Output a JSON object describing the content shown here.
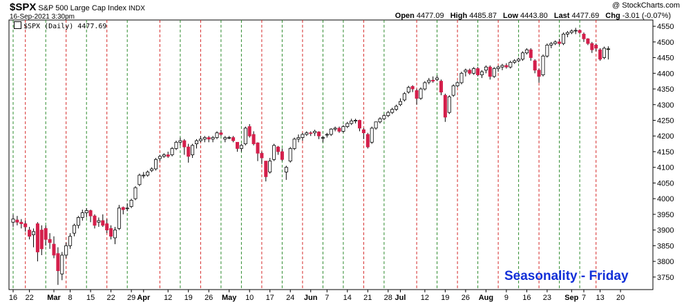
{
  "header": {
    "symbol": "$SPX",
    "company": "S&P 500 Large Cap Index",
    "exchange": "INDX",
    "date": "16-Sep-2021 3:30pm",
    "watermark": "@ StockCharts.com"
  },
  "quote": {
    "open_label": "Open",
    "open": "4477.09",
    "high_label": "High",
    "high": "4485.87",
    "low_label": "Low",
    "low": "4443.80",
    "last_label": "Last",
    "last": "4477.69",
    "chg_label": "Chg",
    "chg": "-3.01 (-0.07%)"
  },
  "legend": {
    "label": "$SPX (Daily) 4477.69"
  },
  "annotation": "Seasonality - Friday",
  "colors": {
    "up": "#ffffff",
    "down": "#d41f4b",
    "friday_line": "#d62a2a",
    "other_line": "#2e8b2e",
    "annotation": "#1330d8"
  },
  "chart_data": {
    "type": "candlestick",
    "y_range": [
      3710,
      4570
    ],
    "y_ticks": [
      3750,
      3800,
      3850,
      3900,
      3950,
      4000,
      4050,
      4100,
      4150,
      4200,
      4250,
      4300,
      4350,
      4400,
      4450,
      4500,
      4550
    ],
    "x_labels": [
      {
        "label": "16",
        "bar": 0
      },
      {
        "label": "22",
        "bar": 4
      },
      {
        "label": "Mar",
        "bar": 10,
        "bold": true
      },
      {
        "label": "8",
        "bar": 14
      },
      {
        "label": "15",
        "bar": 19
      },
      {
        "label": "22",
        "bar": 24
      },
      {
        "label": "29",
        "bar": 29
      },
      {
        "label": "Apr",
        "bar": 32,
        "bold": true
      },
      {
        "label": "12",
        "bar": 38
      },
      {
        "label": "19",
        "bar": 43
      },
      {
        "label": "26",
        "bar": 48
      },
      {
        "label": "May",
        "bar": 53,
        "bold": true
      },
      {
        "label": "10",
        "bar": 58
      },
      {
        "label": "17",
        "bar": 63
      },
      {
        "label": "24",
        "bar": 68
      },
      {
        "label": "Jun",
        "bar": 73,
        "bold": true
      },
      {
        "label": "7",
        "bar": 77
      },
      {
        "label": "14",
        "bar": 82
      },
      {
        "label": "21",
        "bar": 87
      },
      {
        "label": "28",
        "bar": 92
      },
      {
        "label": "Jul",
        "bar": 95,
        "bold": true
      },
      {
        "label": "12",
        "bar": 101
      },
      {
        "label": "19",
        "bar": 106
      },
      {
        "label": "26",
        "bar": 111
      },
      {
        "label": "Aug",
        "bar": 116,
        "bold": true
      },
      {
        "label": "9",
        "bar": 121
      },
      {
        "label": "16",
        "bar": 126
      },
      {
        "label": "23",
        "bar": 131
      },
      {
        "label": "Sep",
        "bar": 137,
        "bold": true
      },
      {
        "label": "7",
        "bar": 140
      },
      {
        "label": "13",
        "bar": 144
      },
      {
        "label": "20",
        "bar": 149
      }
    ],
    "friday_bars": [
      3,
      13,
      23,
      36,
      46,
      61,
      71,
      86,
      99,
      109,
      119,
      129,
      143
    ],
    "weekly_bars": [
      0,
      8,
      18,
      28,
      41,
      51,
      56,
      66,
      76,
      81,
      91,
      104,
      114,
      124,
      134,
      139
    ],
    "series": [
      {
        "o": 3925,
        "h": 3950,
        "l": 3910,
        "c": 3935
      },
      {
        "o": 3932,
        "h": 3945,
        "l": 3915,
        "c": 3925
      },
      {
        "o": 3925,
        "h": 3935,
        "l": 3905,
        "c": 3920
      },
      {
        "o": 3920,
        "h": 3930,
        "l": 3895,
        "c": 3910
      },
      {
        "o": 3900,
        "h": 3910,
        "l": 3870,
        "c": 3880
      },
      {
        "o": 3885,
        "h": 3905,
        "l": 3845,
        "c": 3895
      },
      {
        "o": 3920,
        "h": 3925,
        "l": 3800,
        "c": 3830
      },
      {
        "o": 3900,
        "h": 3915,
        "l": 3820,
        "c": 3840
      },
      {
        "o": 3905,
        "h": 3915,
        "l": 3850,
        "c": 3870
      },
      {
        "o": 3870,
        "h": 3890,
        "l": 3840,
        "c": 3860
      },
      {
        "o": 3855,
        "h": 3880,
        "l": 3810,
        "c": 3820
      },
      {
        "o": 3825,
        "h": 3845,
        "l": 3725,
        "c": 3770
      },
      {
        "o": 3760,
        "h": 3830,
        "l": 3740,
        "c": 3820
      },
      {
        "o": 3820,
        "h": 3860,
        "l": 3810,
        "c": 3850
      },
      {
        "o": 3850,
        "h": 3890,
        "l": 3840,
        "c": 3880
      },
      {
        "o": 3890,
        "h": 3920,
        "l": 3880,
        "c": 3915
      },
      {
        "o": 3915,
        "h": 3945,
        "l": 3905,
        "c": 3940
      },
      {
        "o": 3940,
        "h": 3965,
        "l": 3930,
        "c": 3955
      },
      {
        "o": 3955,
        "h": 3970,
        "l": 3940,
        "c": 3962
      },
      {
        "o": 3962,
        "h": 3965,
        "l": 3925,
        "c": 3945
      },
      {
        "o": 3945,
        "h": 3950,
        "l": 3905,
        "c": 3915
      },
      {
        "o": 3925,
        "h": 3940,
        "l": 3910,
        "c": 3930
      },
      {
        "o": 3930,
        "h": 3950,
        "l": 3910,
        "c": 3915
      },
      {
        "o": 3920,
        "h": 3935,
        "l": 3890,
        "c": 3900
      },
      {
        "o": 3905,
        "h": 3915,
        "l": 3870,
        "c": 3880
      },
      {
        "o": 3875,
        "h": 3910,
        "l": 3855,
        "c": 3900
      },
      {
        "o": 3905,
        "h": 3980,
        "l": 3900,
        "c": 3970
      },
      {
        "o": 3972,
        "h": 3975,
        "l": 3950,
        "c": 3965
      },
      {
        "o": 3968,
        "h": 3985,
        "l": 3960,
        "c": 3970
      },
      {
        "o": 3975,
        "h": 4000,
        "l": 3970,
        "c": 3995
      },
      {
        "o": 4000,
        "h": 4040,
        "l": 3995,
        "c": 4035
      },
      {
        "o": 4045,
        "h": 4080,
        "l": 4040,
        "c": 4075
      },
      {
        "o": 4075,
        "h": 4085,
        "l": 4065,
        "c": 4075
      },
      {
        "o": 4075,
        "h": 4090,
        "l": 4070,
        "c": 4085
      },
      {
        "o": 4090,
        "h": 4100,
        "l": 4085,
        "c": 4095
      },
      {
        "o": 4095,
        "h": 4130,
        "l": 4090,
        "c": 4125
      },
      {
        "o": 4128,
        "h": 4140,
        "l": 4120,
        "c": 4135
      },
      {
        "o": 4135,
        "h": 4145,
        "l": 4130,
        "c": 4140
      },
      {
        "o": 4140,
        "h": 4150,
        "l": 4130,
        "c": 4135
      },
      {
        "o": 4140,
        "h": 4165,
        "l": 4135,
        "c": 4160
      },
      {
        "o": 4160,
        "h": 4185,
        "l": 4155,
        "c": 4180
      },
      {
        "o": 4180,
        "h": 4195,
        "l": 4170,
        "c": 4185
      },
      {
        "o": 4185,
        "h": 4190,
        "l": 4140,
        "c": 4165
      },
      {
        "o": 4165,
        "h": 4175,
        "l": 4115,
        "c": 4135
      },
      {
        "o": 4140,
        "h": 4175,
        "l": 4130,
        "c": 4170
      },
      {
        "o": 4175,
        "h": 4190,
        "l": 4160,
        "c": 4185
      },
      {
        "o": 4185,
        "h": 4200,
        "l": 4180,
        "c": 4190
      },
      {
        "o": 4190,
        "h": 4200,
        "l": 4180,
        "c": 4195
      },
      {
        "o": 4195,
        "h": 4200,
        "l": 4180,
        "c": 4190
      },
      {
        "o": 4190,
        "h": 4200,
        "l": 4180,
        "c": 4195
      },
      {
        "o": 4195,
        "h": 4215,
        "l": 4190,
        "c": 4210
      },
      {
        "o": 4210,
        "h": 4220,
        "l": 4200,
        "c": 4205
      },
      {
        "o": 4190,
        "h": 4200,
        "l": 4180,
        "c": 4195
      },
      {
        "o": 4195,
        "h": 4200,
        "l": 4190,
        "c": 4195
      },
      {
        "o": 4195,
        "h": 4200,
        "l": 4180,
        "c": 4185
      },
      {
        "o": 4180,
        "h": 4180,
        "l": 4150,
        "c": 4160
      },
      {
        "o": 4160,
        "h": 4175,
        "l": 4150,
        "c": 4170
      },
      {
        "o": 4175,
        "h": 4230,
        "l": 4170,
        "c": 4225
      },
      {
        "o": 4230,
        "h": 4238,
        "l": 4195,
        "c": 4200
      },
      {
        "o": 4205,
        "h": 4215,
        "l": 4170,
        "c": 4175
      },
      {
        "o": 4178,
        "h": 4180,
        "l": 4120,
        "c": 4145
      },
      {
        "o": 4145,
        "h": 4150,
        "l": 4110,
        "c": 4130
      },
      {
        "o": 4120,
        "h": 4120,
        "l": 4055,
        "c": 4070
      },
      {
        "o": 4085,
        "h": 4130,
        "l": 4080,
        "c": 4120
      },
      {
        "o": 4125,
        "h": 4175,
        "l": 4120,
        "c": 4170
      },
      {
        "o": 4165,
        "h": 4168,
        "l": 4140,
        "c": 4150
      },
      {
        "o": 4150,
        "h": 4160,
        "l": 4120,
        "c": 4125
      },
      {
        "o": 4085,
        "h": 4105,
        "l": 4060,
        "c": 4100
      },
      {
        "o": 4120,
        "h": 4165,
        "l": 4115,
        "c": 4160
      },
      {
        "o": 4160,
        "h": 4195,
        "l": 4155,
        "c": 4190
      },
      {
        "o": 4190,
        "h": 4205,
        "l": 4180,
        "c": 4195
      },
      {
        "o": 4195,
        "h": 4210,
        "l": 4185,
        "c": 4205
      },
      {
        "o": 4205,
        "h": 4215,
        "l": 4200,
        "c": 4210
      },
      {
        "o": 4210,
        "h": 4215,
        "l": 4200,
        "c": 4208
      },
      {
        "o": 4210,
        "h": 4220,
        "l": 4200,
        "c": 4215
      },
      {
        "o": 4213,
        "h": 4215,
        "l": 4190,
        "c": 4200
      },
      {
        "o": 4195,
        "h": 4200,
        "l": 4180,
        "c": 4195
      },
      {
        "o": 4205,
        "h": 4210,
        "l": 4195,
        "c": 4205
      },
      {
        "o": 4205,
        "h": 4225,
        "l": 4200,
        "c": 4222
      },
      {
        "o": 4222,
        "h": 4230,
        "l": 4215,
        "c": 4225
      },
      {
        "o": 4225,
        "h": 4230,
        "l": 4210,
        "c": 4215
      },
      {
        "o": 4215,
        "h": 4235,
        "l": 4210,
        "c": 4230
      },
      {
        "o": 4230,
        "h": 4245,
        "l": 4225,
        "c": 4240
      },
      {
        "o": 4240,
        "h": 4255,
        "l": 4235,
        "c": 4248
      },
      {
        "o": 4250,
        "h": 4255,
        "l": 4240,
        "c": 4250
      },
      {
        "o": 4250,
        "h": 4252,
        "l": 4215,
        "c": 4225
      },
      {
        "o": 4220,
        "h": 4225,
        "l": 4190,
        "c": 4210
      },
      {
        "o": 4205,
        "h": 4210,
        "l": 4160,
        "c": 4165
      },
      {
        "o": 4180,
        "h": 4230,
        "l": 4175,
        "c": 4225
      },
      {
        "o": 4225,
        "h": 4245,
        "l": 4220,
        "c": 4245
      },
      {
        "o": 4245,
        "h": 4260,
        "l": 4240,
        "c": 4255
      },
      {
        "o": 4255,
        "h": 4270,
        "l": 4250,
        "c": 4265
      },
      {
        "o": 4265,
        "h": 4280,
        "l": 4260,
        "c": 4275
      },
      {
        "o": 4275,
        "h": 4290,
        "l": 4270,
        "c": 4285
      },
      {
        "o": 4285,
        "h": 4300,
        "l": 4280,
        "c": 4295
      },
      {
        "o": 4300,
        "h": 4320,
        "l": 4295,
        "c": 4310
      },
      {
        "o": 4315,
        "h": 4340,
        "l": 4310,
        "c": 4335
      },
      {
        "o": 4340,
        "h": 4360,
        "l": 4335,
        "c": 4355
      },
      {
        "o": 4358,
        "h": 4362,
        "l": 4340,
        "c": 4350
      },
      {
        "o": 4345,
        "h": 4350,
        "l": 4300,
        "c": 4320
      },
      {
        "o": 4320,
        "h": 4355,
        "l": 4315,
        "c": 4350
      },
      {
        "o": 4350,
        "h": 4375,
        "l": 4345,
        "c": 4370
      },
      {
        "o": 4372,
        "h": 4385,
        "l": 4365,
        "c": 4378
      },
      {
        "o": 4378,
        "h": 4390,
        "l": 4370,
        "c": 4375
      },
      {
        "o": 4380,
        "h": 4393,
        "l": 4375,
        "c": 4385
      },
      {
        "o": 4375,
        "h": 4380,
        "l": 4330,
        "c": 4340
      },
      {
        "o": 4330,
        "h": 4335,
        "l": 4245,
        "c": 4260
      },
      {
        "o": 4275,
        "h": 4330,
        "l": 4270,
        "c": 4325
      },
      {
        "o": 4330,
        "h": 4365,
        "l": 4325,
        "c": 4360
      },
      {
        "o": 4360,
        "h": 4375,
        "l": 4355,
        "c": 4370
      },
      {
        "o": 4370,
        "h": 4405,
        "l": 4365,
        "c": 4400
      },
      {
        "o": 4405,
        "h": 4415,
        "l": 4390,
        "c": 4410
      },
      {
        "o": 4410,
        "h": 4415,
        "l": 4395,
        "c": 4400
      },
      {
        "o": 4400,
        "h": 4420,
        "l": 4395,
        "c": 4415
      },
      {
        "o": 4415,
        "h": 4420,
        "l": 4390,
        "c": 4395
      },
      {
        "o": 4395,
        "h": 4410,
        "l": 4385,
        "c": 4405
      },
      {
        "o": 4410,
        "h": 4425,
        "l": 4400,
        "c": 4420
      },
      {
        "o": 4420,
        "h": 4425,
        "l": 4380,
        "c": 4390
      },
      {
        "o": 4390,
        "h": 4420,
        "l": 4385,
        "c": 4415
      },
      {
        "o": 4415,
        "h": 4425,
        "l": 4405,
        "c": 4420
      },
      {
        "o": 4420,
        "h": 4430,
        "l": 4410,
        "c": 4425
      },
      {
        "o": 4425,
        "h": 4432,
        "l": 4415,
        "c": 4420
      },
      {
        "o": 4420,
        "h": 4440,
        "l": 4415,
        "c": 4435
      },
      {
        "o": 4435,
        "h": 4445,
        "l": 4430,
        "c": 4440
      },
      {
        "o": 4440,
        "h": 4450,
        "l": 4435,
        "c": 4445
      },
      {
        "o": 4445,
        "h": 4470,
        "l": 4440,
        "c": 4465
      },
      {
        "o": 4465,
        "h": 4480,
        "l": 4460,
        "c": 4475
      },
      {
        "o": 4475,
        "h": 4480,
        "l": 4440,
        "c": 4450
      },
      {
        "o": 4440,
        "h": 4445,
        "l": 4400,
        "c": 4410
      },
      {
        "o": 4410,
        "h": 4415,
        "l": 4370,
        "c": 4390
      },
      {
        "o": 4395,
        "h": 4460,
        "l": 4390,
        "c": 4455
      },
      {
        "o": 4455,
        "h": 4495,
        "l": 4450,
        "c": 4490
      },
      {
        "o": 4490,
        "h": 4500,
        "l": 4480,
        "c": 4495
      },
      {
        "o": 4495,
        "h": 4505,
        "l": 4490,
        "c": 4500
      },
      {
        "o": 4500,
        "h": 4510,
        "l": 4490,
        "c": 4495
      },
      {
        "o": 4495,
        "h": 4530,
        "l": 4490,
        "c": 4525
      },
      {
        "o": 4525,
        "h": 4535,
        "l": 4515,
        "c": 4530
      },
      {
        "o": 4530,
        "h": 4540,
        "l": 4525,
        "c": 4535
      },
      {
        "o": 4535,
        "h": 4545,
        "l": 4525,
        "c": 4537
      },
      {
        "o": 4537,
        "h": 4540,
        "l": 4525,
        "c": 4530
      },
      {
        "o": 4525,
        "h": 4530,
        "l": 4500,
        "c": 4510
      },
      {
        "o": 4510,
        "h": 4512,
        "l": 4490,
        "c": 4495
      },
      {
        "o": 4495,
        "h": 4500,
        "l": 4465,
        "c": 4475
      },
      {
        "o": 4490,
        "h": 4495,
        "l": 4470,
        "c": 4480
      },
      {
        "o": 4475,
        "h": 4480,
        "l": 4440,
        "c": 4445
      },
      {
        "o": 4450,
        "h": 4485,
        "l": 4445,
        "c": 4480
      },
      {
        "o": 4477,
        "h": 4486,
        "l": 4444,
        "c": 4478
      }
    ]
  }
}
